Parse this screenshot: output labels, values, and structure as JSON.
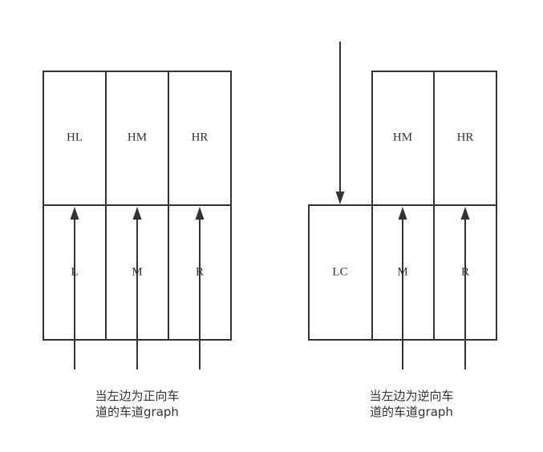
{
  "left_diagram": {
    "labels": {
      "hl": "HL",
      "hm": "HM",
      "hr": "HR",
      "l": "L",
      "m": "M",
      "r": "R"
    },
    "caption": {
      "line1": "当左边为正向车",
      "line2": "道的车道graph"
    }
  },
  "right_diagram": {
    "labels": {
      "hm": "HM",
      "hr": "HR",
      "lc": "LC",
      "m": "M",
      "r": "R"
    },
    "caption": {
      "line1": "当左边为逆向车",
      "line2": "道的车道graph"
    }
  }
}
